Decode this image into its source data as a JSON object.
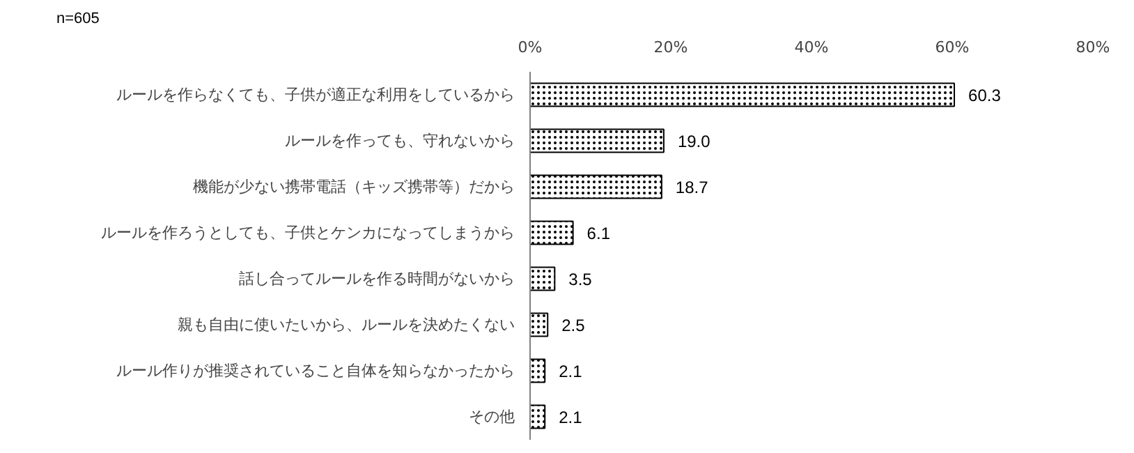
{
  "chart_data": {
    "type": "bar",
    "orientation": "horizontal",
    "categories": [
      "ルールを作らなくても、子供が適正な利用をしているから",
      "ルールを作っても、守れないから",
      "機能が少ない携帯電話（キッズ携帯等）だから",
      "ルールを作ろうとしても、子供とケンカになってしまうから",
      "話し合ってルールを作る時間がないから",
      "親も自由に使いたいから、ルールを決めたくない",
      "ルール作りが推奨されていること自体を知らなかったから",
      "その他"
    ],
    "values": [
      60.3,
      19.0,
      18.7,
      6.1,
      3.5,
      2.5,
      2.1,
      2.1
    ],
    "color": "#ffffff",
    "xlim": [
      0,
      80
    ],
    "xticks": [
      {
        "value": 0,
        "label": "0%"
      },
      {
        "value": 20,
        "label": "20%"
      },
      {
        "value": 40,
        "label": "40%"
      },
      {
        "value": 60,
        "label": "60%"
      },
      {
        "value": 80,
        "label": "80%"
      }
    ],
    "value_labels": [
      "60.3",
      "19.0",
      "18.7",
      "6.1",
      "3.5",
      "2.5",
      "2.1",
      "2.1"
    ],
    "grid": false,
    "annotations": [
      "n=605"
    ]
  }
}
